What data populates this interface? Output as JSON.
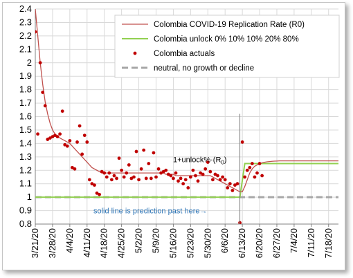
{
  "chart_data": {
    "type": "line",
    "title": "",
    "xlabel": "",
    "ylabel": "",
    "ylim": [
      0.8,
      2.4
    ],
    "yticks": [
      "0.8",
      "0.9",
      "1",
      "1.1",
      "1.2",
      "1.3",
      "1.4",
      "1.5",
      "1.6",
      "1.7",
      "1.8",
      "1.9",
      "2",
      "2.1",
      "2.2",
      "2.3",
      "2.4"
    ],
    "xlim": [
      "2020-03-21",
      "2020-07-22"
    ],
    "xtick_labels": [
      "3/21/20",
      "3/28/20",
      "4/4/20",
      "4/11/20",
      "4/18/20",
      "4/25/20",
      "5/2/20",
      "5/9/20",
      "5/16/20",
      "5/23/20",
      "5/30/20",
      "6/6/20",
      "6/13/20",
      "6/20/20",
      "6/27/20",
      "7/4/20",
      "7/11/20",
      "7/18/20"
    ],
    "grid": true,
    "legend_position": "top-right",
    "series": [
      {
        "name": "Colombia COVID-19 Replication Rate (R0)",
        "color": "#c0504d",
        "style": "line",
        "x": [
          "2020-03-21",
          "2020-03-22",
          "2020-03-23",
          "2020-03-24",
          "2020-03-25",
          "2020-03-26",
          "2020-03-27",
          "2020-03-28",
          "2020-03-29",
          "2020-03-30",
          "2020-03-31",
          "2020-04-01",
          "2020-04-02",
          "2020-04-03",
          "2020-04-04",
          "2020-04-05",
          "2020-04-06",
          "2020-04-07",
          "2020-04-08",
          "2020-04-09",
          "2020-04-10",
          "2020-04-11",
          "2020-04-12",
          "2020-04-13",
          "2020-04-14",
          "2020-04-15",
          "2020-04-16",
          "2020-04-17",
          "2020-04-18",
          "2020-04-19",
          "2020-04-20",
          "2020-04-21",
          "2020-04-22",
          "2020-04-23",
          "2020-04-24",
          "2020-04-25",
          "2020-04-26",
          "2020-04-27",
          "2020-04-28",
          "2020-04-29",
          "2020-04-30",
          "2020-05-01",
          "2020-05-02",
          "2020-05-03",
          "2020-05-04",
          "2020-05-05",
          "2020-05-06",
          "2020-05-07",
          "2020-05-08",
          "2020-05-09",
          "2020-05-10",
          "2020-05-11",
          "2020-05-12",
          "2020-05-13",
          "2020-05-14",
          "2020-05-15",
          "2020-05-16",
          "2020-05-17",
          "2020-05-18",
          "2020-05-19",
          "2020-05-20",
          "2020-05-21",
          "2020-05-22",
          "2020-05-23",
          "2020-05-24",
          "2020-05-25",
          "2020-05-26",
          "2020-05-27",
          "2020-05-28",
          "2020-05-29",
          "2020-05-30",
          "2020-05-31",
          "2020-06-01",
          "2020-06-02",
          "2020-06-03",
          "2020-06-04",
          "2020-06-05",
          "2020-06-06",
          "2020-06-07",
          "2020-06-08",
          "2020-06-09",
          "2020-06-10",
          "2020-06-11",
          "2020-06-12",
          "2020-06-13",
          "2020-06-14",
          "2020-06-15",
          "2020-06-16",
          "2020-06-17",
          "2020-06-18",
          "2020-06-19",
          "2020-06-20",
          "2020-06-21",
          "2020-06-22",
          "2020-06-23",
          "2020-06-24",
          "2020-06-25",
          "2020-06-26",
          "2020-06-27",
          "2020-06-28",
          "2020-06-29",
          "2020-06-30",
          "2020-07-01",
          "2020-07-02",
          "2020-07-03",
          "2020-07-04",
          "2020-07-05",
          "2020-07-06",
          "2020-07-07",
          "2020-07-08",
          "2020-07-09",
          "2020-07-10",
          "2020-07-11",
          "2020-07-12",
          "2020-07-13",
          "2020-07-14",
          "2020-07-15",
          "2020-07-16",
          "2020-07-17",
          "2020-07-18",
          "2020-07-19",
          "2020-07-20",
          "2020-07-21",
          "2020-07-22"
        ],
        "y": [
          2.4,
          2.2,
          2.0,
          1.84,
          1.71,
          1.62,
          1.55,
          1.5,
          1.47,
          1.45,
          1.44,
          1.43,
          1.42,
          1.41,
          1.4,
          1.38,
          1.36,
          1.34,
          1.32,
          1.3,
          1.28,
          1.26,
          1.24,
          1.22,
          1.21,
          1.2,
          1.19,
          1.18,
          1.18,
          1.18,
          1.18,
          1.18,
          1.18,
          1.18,
          1.18,
          1.18,
          1.18,
          1.18,
          1.18,
          1.18,
          1.18,
          1.18,
          1.18,
          1.18,
          1.18,
          1.18,
          1.18,
          1.18,
          1.18,
          1.18,
          1.18,
          1.18,
          1.18,
          1.17,
          1.17,
          1.17,
          1.17,
          1.16,
          1.16,
          1.16,
          1.16,
          1.16,
          1.16,
          1.16,
          1.16,
          1.16,
          1.16,
          1.16,
          1.16,
          1.16,
          1.16,
          1.16,
          1.15,
          1.14,
          1.13,
          1.12,
          1.11,
          1.1,
          1.09,
          1.08,
          1.07,
          1.06,
          1.05,
          1.04,
          1.04,
          1.08,
          1.13,
          1.18,
          1.21,
          1.23,
          1.24,
          1.25,
          1.255,
          1.26,
          1.263,
          1.265,
          1.267,
          1.268,
          1.269,
          1.27,
          1.27,
          1.27,
          1.27,
          1.27,
          1.27,
          1.27,
          1.27,
          1.27,
          1.27,
          1.27,
          1.27,
          1.27,
          1.27,
          1.27,
          1.27,
          1.27,
          1.27,
          1.27,
          1.27,
          1.27,
          1.27,
          1.27,
          1.27,
          1.27
        ]
      },
      {
        "name": "Colombia unlock 0% 10% 10% 20% 80%",
        "color": "#92d050",
        "style": "line",
        "x": [
          "2020-03-21",
          "2020-06-12",
          "2020-06-14",
          "2020-07-22"
        ],
        "y": [
          1.0,
          1.0,
          1.25,
          1.25
        ]
      },
      {
        "name": "Colombia actuals",
        "color": "#c00000",
        "style": "markers",
        "x": [
          "2020-03-21",
          "2020-03-22",
          "2020-03-23",
          "2020-03-24",
          "2020-03-25",
          "2020-03-26",
          "2020-03-27",
          "2020-03-28",
          "2020-03-29",
          "2020-03-30",
          "2020-03-31",
          "2020-04-01",
          "2020-04-02",
          "2020-04-03",
          "2020-04-04",
          "2020-04-05",
          "2020-04-06",
          "2020-04-07",
          "2020-04-08",
          "2020-04-09",
          "2020-04-10",
          "2020-04-11",
          "2020-04-12",
          "2020-04-13",
          "2020-04-14",
          "2020-04-15",
          "2020-04-16",
          "2020-04-17",
          "2020-04-18",
          "2020-04-19",
          "2020-04-20",
          "2020-04-21",
          "2020-04-22",
          "2020-04-23",
          "2020-04-24",
          "2020-04-25",
          "2020-04-26",
          "2020-04-27",
          "2020-04-28",
          "2020-04-29",
          "2020-04-30",
          "2020-05-01",
          "2020-05-02",
          "2020-05-03",
          "2020-05-04",
          "2020-05-05",
          "2020-05-06",
          "2020-05-07",
          "2020-05-08",
          "2020-05-09",
          "2020-05-10",
          "2020-05-11",
          "2020-05-12",
          "2020-05-13",
          "2020-05-14",
          "2020-05-15",
          "2020-05-16",
          "2020-05-17",
          "2020-05-18",
          "2020-05-19",
          "2020-05-20",
          "2020-05-21",
          "2020-05-22",
          "2020-05-23",
          "2020-05-24",
          "2020-05-25",
          "2020-05-26",
          "2020-05-27",
          "2020-05-28",
          "2020-05-29",
          "2020-05-30",
          "2020-05-31",
          "2020-06-01",
          "2020-06-02",
          "2020-06-03",
          "2020-06-04",
          "2020-06-05",
          "2020-06-06",
          "2020-06-07",
          "2020-06-08",
          "2020-06-09",
          "2020-06-10",
          "2020-06-11",
          "2020-06-12",
          "2020-06-13",
          "2020-06-14",
          "2020-06-15",
          "2020-06-16",
          "2020-06-17",
          "2020-06-18",
          "2020-06-19",
          "2020-06-20",
          "2020-06-21"
        ],
        "y": [
          2.23,
          1.47,
          2.0,
          1.78,
          1.68,
          1.43,
          1.44,
          1.45,
          1.46,
          1.45,
          1.47,
          1.64,
          1.39,
          1.38,
          1.42,
          1.22,
          1.21,
          1.41,
          1.53,
          1.32,
          1.46,
          1.41,
          1.13,
          1.1,
          1.09,
          1.03,
          1.02,
          1.19,
          1.18,
          1.15,
          1.18,
          1.13,
          1.16,
          1.14,
          1.29,
          1.2,
          1.15,
          1.18,
          1.24,
          1.14,
          1.15,
          1.34,
          1.13,
          1.21,
          1.35,
          1.14,
          1.25,
          1.14,
          1.33,
          1.15,
          1.21,
          1.18,
          1.19,
          1.2,
          1.17,
          1.16,
          1.14,
          1.18,
          1.12,
          1.14,
          1.1,
          1.13,
          1.07,
          1.15,
          1.2,
          1.16,
          1.12,
          1.18,
          1.17,
          1.21,
          1.26,
          1.19,
          1.13,
          1.17,
          1.16,
          1.13,
          1.15,
          1.13,
          1.07,
          1.1,
          1.05,
          1.09,
          1.1,
          0.81,
          1.41,
          1.15,
          1.2,
          1.22,
          1.25,
          1.15,
          1.18,
          1.25,
          1.16
        ]
      },
      {
        "name": "neutral, no growth or decline",
        "color": "#a6a6a6",
        "style": "dashed",
        "x": [
          "2020-03-21",
          "2020-07-22"
        ],
        "y": [
          1.0,
          1.0
        ]
      }
    ],
    "annotations": [
      {
        "text": "solid line is prediction past here→",
        "x": "2020-05-15",
        "y": 0.9,
        "color": "#2e75b6"
      },
      {
        "text": "1+unlock%·(R",
        "subscript": "0",
        "suffix": ")",
        "x": "2020-05-20",
        "y": 1.28,
        "color": "#000000"
      }
    ],
    "vertical_marker": {
      "x": "2020-06-12",
      "y_from": 0.8,
      "y_to": 1.62,
      "color": "#7f7f7f"
    }
  }
}
